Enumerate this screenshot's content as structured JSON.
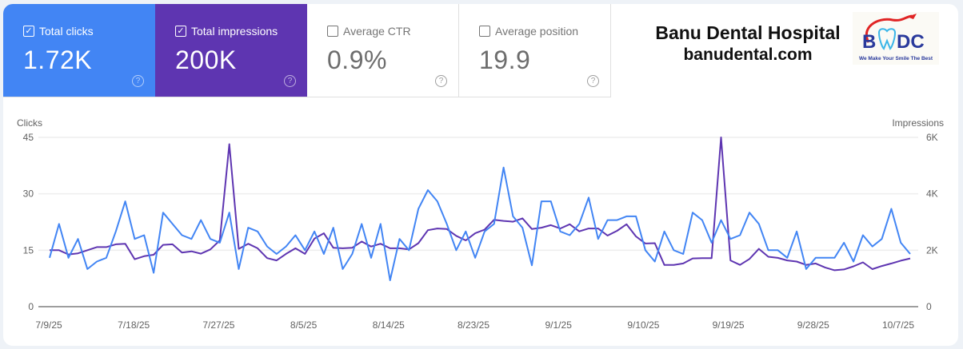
{
  "metrics": {
    "clicks": {
      "label": "Total clicks",
      "value": "1.72K",
      "checked": true,
      "color": "#4285f4"
    },
    "impressions": {
      "label": "Total impressions",
      "value": "200K",
      "checked": true,
      "color": "#5e35b1"
    },
    "ctr": {
      "label": "Average CTR",
      "value": "0.9%",
      "checked": false
    },
    "position": {
      "label": "Average position",
      "value": "19.9",
      "checked": false
    },
    "help_glyph": "?"
  },
  "brand": {
    "name": "Banu Dental Hospital",
    "site": "banudental.com",
    "logo_text": "BDC",
    "logo_tagline": "We Make Your Smile The Best"
  },
  "chart_data": {
    "type": "line",
    "start_date": "2025-07-09",
    "y_left": {
      "label": "Clicks",
      "ticks": [
        "0",
        "15",
        "30",
        "45"
      ],
      "range": [
        0,
        45
      ]
    },
    "y_right": {
      "label": "Impressions",
      "ticks": [
        "0",
        "2K",
        "4K",
        "6K"
      ],
      "range": [
        0,
        6000
      ]
    },
    "x_ticks": [
      "7/9/25",
      "7/18/25",
      "7/27/25",
      "8/5/25",
      "8/14/25",
      "8/23/25",
      "9/1/25",
      "9/10/25",
      "9/19/25",
      "9/28/25",
      "10/7/25"
    ],
    "grid": true,
    "series": [
      {
        "name": "Clicks",
        "axis": "left",
        "color": "#4285f4",
        "values": [
          13,
          22,
          13,
          18,
          10,
          12,
          13,
          20,
          28,
          18,
          19,
          9,
          25,
          22,
          19,
          18,
          23,
          18,
          17,
          25,
          10,
          21,
          20,
          16,
          14,
          16,
          19,
          15,
          20,
          14,
          21,
          10,
          14,
          22,
          13,
          22,
          7,
          18,
          15,
          26,
          31,
          28,
          22,
          15,
          20,
          13,
          20,
          22,
          37,
          24,
          21,
          11,
          28,
          28,
          20,
          19,
          22,
          29,
          18,
          23,
          23,
          24,
          24,
          15,
          12,
          20,
          15,
          14,
          25,
          23,
          17,
          23,
          18,
          19,
          25,
          22,
          15,
          15,
          13,
          20,
          10,
          13,
          13,
          13,
          17,
          12,
          19,
          16,
          18,
          26,
          17,
          14
        ]
      },
      {
        "name": "Impressions",
        "axis": "right",
        "color": "#5e35b1",
        "values": [
          2000,
          2000,
          1850,
          1890,
          2000,
          2110,
          2110,
          2210,
          2230,
          1680,
          1790,
          1840,
          2190,
          2210,
          1920,
          1960,
          1880,
          2030,
          2350,
          5760,
          2050,
          2230,
          2070,
          1720,
          1640,
          1870,
          2070,
          1870,
          2410,
          2600,
          2090,
          2070,
          2090,
          2310,
          2130,
          2230,
          2070,
          2070,
          2030,
          2250,
          2710,
          2770,
          2750,
          2510,
          2350,
          2600,
          2730,
          3080,
          3040,
          3010,
          3130,
          2750,
          2800,
          2890,
          2770,
          2920,
          2670,
          2770,
          2770,
          2520,
          2690,
          2920,
          2490,
          2240,
          2250,
          1480,
          1480,
          1530,
          1710,
          1720,
          1720,
          6000,
          1640,
          1480,
          1690,
          2050,
          1770,
          1730,
          1640,
          1600,
          1480,
          1530,
          1390,
          1290,
          1320,
          1430,
          1570,
          1330,
          1440,
          1530,
          1630,
          1710
        ]
      }
    ]
  }
}
